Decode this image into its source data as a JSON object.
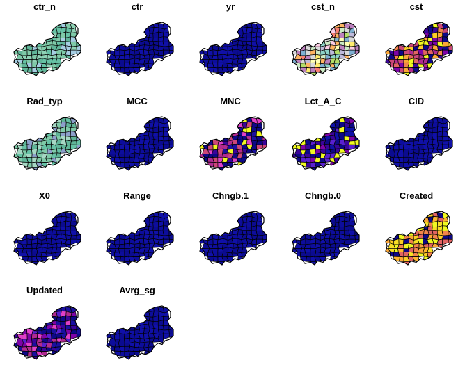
{
  "chart_data": {
    "type": "choropleth-small-multiples",
    "panels": [
      {
        "title": "ctr_n",
        "palette": "pastel",
        "colors": [
          "#66c2a5",
          "#8fd3b6",
          "#5fb598",
          "#7fcaa8",
          "#a6cee3"
        ]
      },
      {
        "title": "ctr",
        "palette": "uniform",
        "colors": [
          "#0d0d9c",
          "#1010a8",
          "#0b0b90"
        ]
      },
      {
        "title": "yr",
        "palette": "uniform",
        "colors": [
          "#0d0d9c",
          "#1010a8",
          "#0b0b90"
        ]
      },
      {
        "title": "cst_n",
        "palette": "mixed",
        "colors": [
          "#8dd3c7",
          "#ffffb3",
          "#bebada",
          "#fb8072",
          "#80b1d3",
          "#fdb462",
          "#b3de69",
          "#fccde5",
          "#d9d9d9",
          "#bc80bd",
          "#ccebc5",
          "#ffed6f"
        ]
      },
      {
        "title": "cst",
        "palette": "plasma",
        "colors": [
          "#0d0887",
          "#3a049a",
          "#7e03a8",
          "#b12a90",
          "#cc4778",
          "#e16462",
          "#f2844b",
          "#fca636",
          "#fcce25",
          "#f0f921"
        ]
      },
      {
        "title": "Rad_typ",
        "palette": "pastel",
        "colors": [
          "#66c2a5",
          "#8da0cb",
          "#5fb598",
          "#a6d8c4",
          "#7fcaa8"
        ]
      },
      {
        "title": "MCC",
        "palette": "uniform",
        "colors": [
          "#0d0d9c",
          "#1010a8",
          "#0b0b90"
        ]
      },
      {
        "title": "MNC",
        "palette": "plasma",
        "colors": [
          "#0d0887",
          "#1a10a0",
          "#3a049a",
          "#0d0887",
          "#b12a90",
          "#e040c8",
          "#cc4778",
          "#f0f921"
        ]
      },
      {
        "title": "Lct_A_C",
        "palette": "plasma",
        "colors": [
          "#0d0887",
          "#1010a8",
          "#3a049a",
          "#0d0887",
          "#5a20d0",
          "#7e03a8",
          "#f0f921"
        ]
      },
      {
        "title": "CID",
        "palette": "uniform",
        "colors": [
          "#0d0d9c",
          "#1010a8",
          "#0b0b90"
        ]
      },
      {
        "title": "X0",
        "palette": "uniform",
        "colors": [
          "#0d0d9c",
          "#1010a8",
          "#0b0b90"
        ]
      },
      {
        "title": "Range",
        "palette": "uniform",
        "colors": [
          "#0d0d9c",
          "#1010a8",
          "#0b0b90"
        ]
      },
      {
        "title": "Chngb.1",
        "palette": "uniform",
        "colors": [
          "#0d0d9c",
          "#1010a8",
          "#0b0b90"
        ]
      },
      {
        "title": "Chngb.0",
        "palette": "uniform",
        "colors": [
          "#0d0d9c",
          "#1010a8",
          "#0b0b90"
        ]
      },
      {
        "title": "Created",
        "palette": "plasma",
        "colors": [
          "#f0f921",
          "#fca636",
          "#fcce25",
          "#f2844b",
          "#fdb42f",
          "#0d0887",
          "#e16462",
          "#f8df25"
        ]
      },
      {
        "title": "Updated",
        "palette": "plasma",
        "colors": [
          "#0d0887",
          "#3a049a",
          "#1a10a0",
          "#5a20d0",
          "#7e03a8",
          "#b12a90",
          "#e040c8",
          "#0d0887"
        ]
      },
      {
        "title": "Avrg_sg",
        "palette": "uniform",
        "colors": [
          "#0d0d9c",
          "#1010a8",
          "#0b0b90"
        ]
      }
    ],
    "layout": {
      "columns": 5,
      "rows": 4
    },
    "legend": "none",
    "grid": false
  }
}
